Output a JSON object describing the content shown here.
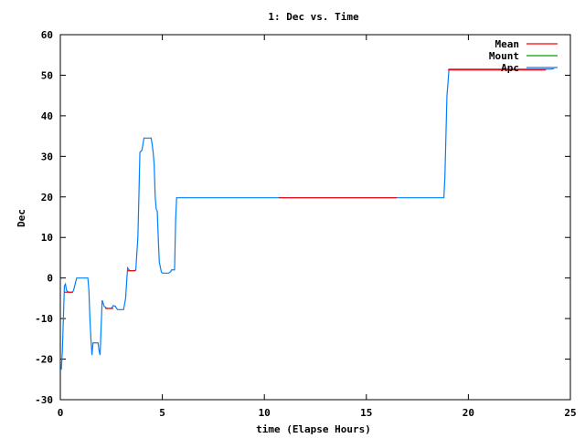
{
  "chart_data": {
    "type": "line",
    "title": "1: Dec vs. Time",
    "xlabel": "time (Elapse Hours)",
    "ylabel": "Dec",
    "xlim": [
      0,
      25
    ],
    "ylim": [
      -30,
      60
    ],
    "xticks": [
      0,
      5,
      10,
      15,
      20,
      25
    ],
    "yticks": [
      -30,
      -20,
      -10,
      0,
      10,
      20,
      30,
      40,
      50,
      60
    ],
    "grid": false,
    "legend_position": "top-right",
    "series": [
      {
        "name": "Mean",
        "color": "#ff0000",
        "segments": [
          [
            [
              0.2,
              -3.5
            ],
            [
              0.6,
              -3.5
            ]
          ],
          [
            [
              2.2,
              -7.5
            ],
            [
              2.6,
              -7.5
            ]
          ],
          [
            [
              3.3,
              1.8
            ],
            [
              3.7,
              1.8
            ]
          ],
          [
            [
              10.7,
              19.8
            ],
            [
              16.5,
              19.8
            ]
          ],
          [
            [
              19.0,
              51.3
            ],
            [
              23.8,
              51.3
            ]
          ]
        ]
      },
      {
        "name": "Mount",
        "color": "#00a000",
        "segments": []
      },
      {
        "name": "Apc",
        "color": "#0080ff",
        "points": [
          [
            0.0,
            -22.5
          ],
          [
            0.05,
            -22.5
          ],
          [
            0.1,
            -18
          ],
          [
            0.15,
            -10
          ],
          [
            0.2,
            -2
          ],
          [
            0.25,
            -1.5
          ],
          [
            0.3,
            -3
          ],
          [
            0.4,
            -3.5
          ],
          [
            0.6,
            -3.5
          ],
          [
            0.65,
            -3
          ],
          [
            0.75,
            -1
          ],
          [
            0.8,
            0
          ],
          [
            1.0,
            0
          ],
          [
            1.2,
            0
          ],
          [
            1.35,
            0
          ],
          [
            1.4,
            -3
          ],
          [
            1.45,
            -10
          ],
          [
            1.5,
            -15
          ],
          [
            1.55,
            -19
          ],
          [
            1.6,
            -16
          ],
          [
            1.75,
            -16
          ],
          [
            1.85,
            -16
          ],
          [
            1.9,
            -18
          ],
          [
            1.95,
            -19
          ],
          [
            2.0,
            -12
          ],
          [
            2.05,
            -5.5
          ],
          [
            2.15,
            -7
          ],
          [
            2.3,
            -7.5
          ],
          [
            2.5,
            -7.5
          ],
          [
            2.6,
            -6.8
          ],
          [
            2.7,
            -7
          ],
          [
            2.8,
            -7.8
          ],
          [
            3.1,
            -7.8
          ],
          [
            3.2,
            -5
          ],
          [
            3.25,
            -1
          ],
          [
            3.3,
            2.5
          ],
          [
            3.4,
            1.8
          ],
          [
            3.6,
            1.8
          ],
          [
            3.7,
            2
          ],
          [
            3.8,
            10
          ],
          [
            3.85,
            20
          ],
          [
            3.9,
            31
          ],
          [
            4.0,
            31.5
          ],
          [
            4.05,
            33
          ],
          [
            4.1,
            34.5
          ],
          [
            4.3,
            34.5
          ],
          [
            4.45,
            34.5
          ],
          [
            4.5,
            33
          ],
          [
            4.55,
            31
          ],
          [
            4.6,
            28
          ],
          [
            4.65,
            20
          ],
          [
            4.7,
            17
          ],
          [
            4.75,
            16.5
          ],
          [
            4.8,
            10
          ],
          [
            4.85,
            4
          ],
          [
            4.95,
            1.5
          ],
          [
            5.0,
            1.2
          ],
          [
            5.3,
            1.2
          ],
          [
            5.4,
            1.5
          ],
          [
            5.45,
            2
          ],
          [
            5.5,
            2
          ],
          [
            5.6,
            2
          ],
          [
            5.65,
            14
          ],
          [
            5.7,
            19.8
          ],
          [
            10.0,
            19.8
          ],
          [
            15.0,
            19.8
          ],
          [
            18.8,
            19.8
          ],
          [
            18.85,
            25
          ],
          [
            18.9,
            35
          ],
          [
            18.95,
            45
          ],
          [
            19.0,
            48
          ],
          [
            19.05,
            51.5
          ],
          [
            21.0,
            51.5
          ],
          [
            24.0,
            51.5
          ],
          [
            24.2,
            51.6
          ]
        ]
      }
    ]
  }
}
